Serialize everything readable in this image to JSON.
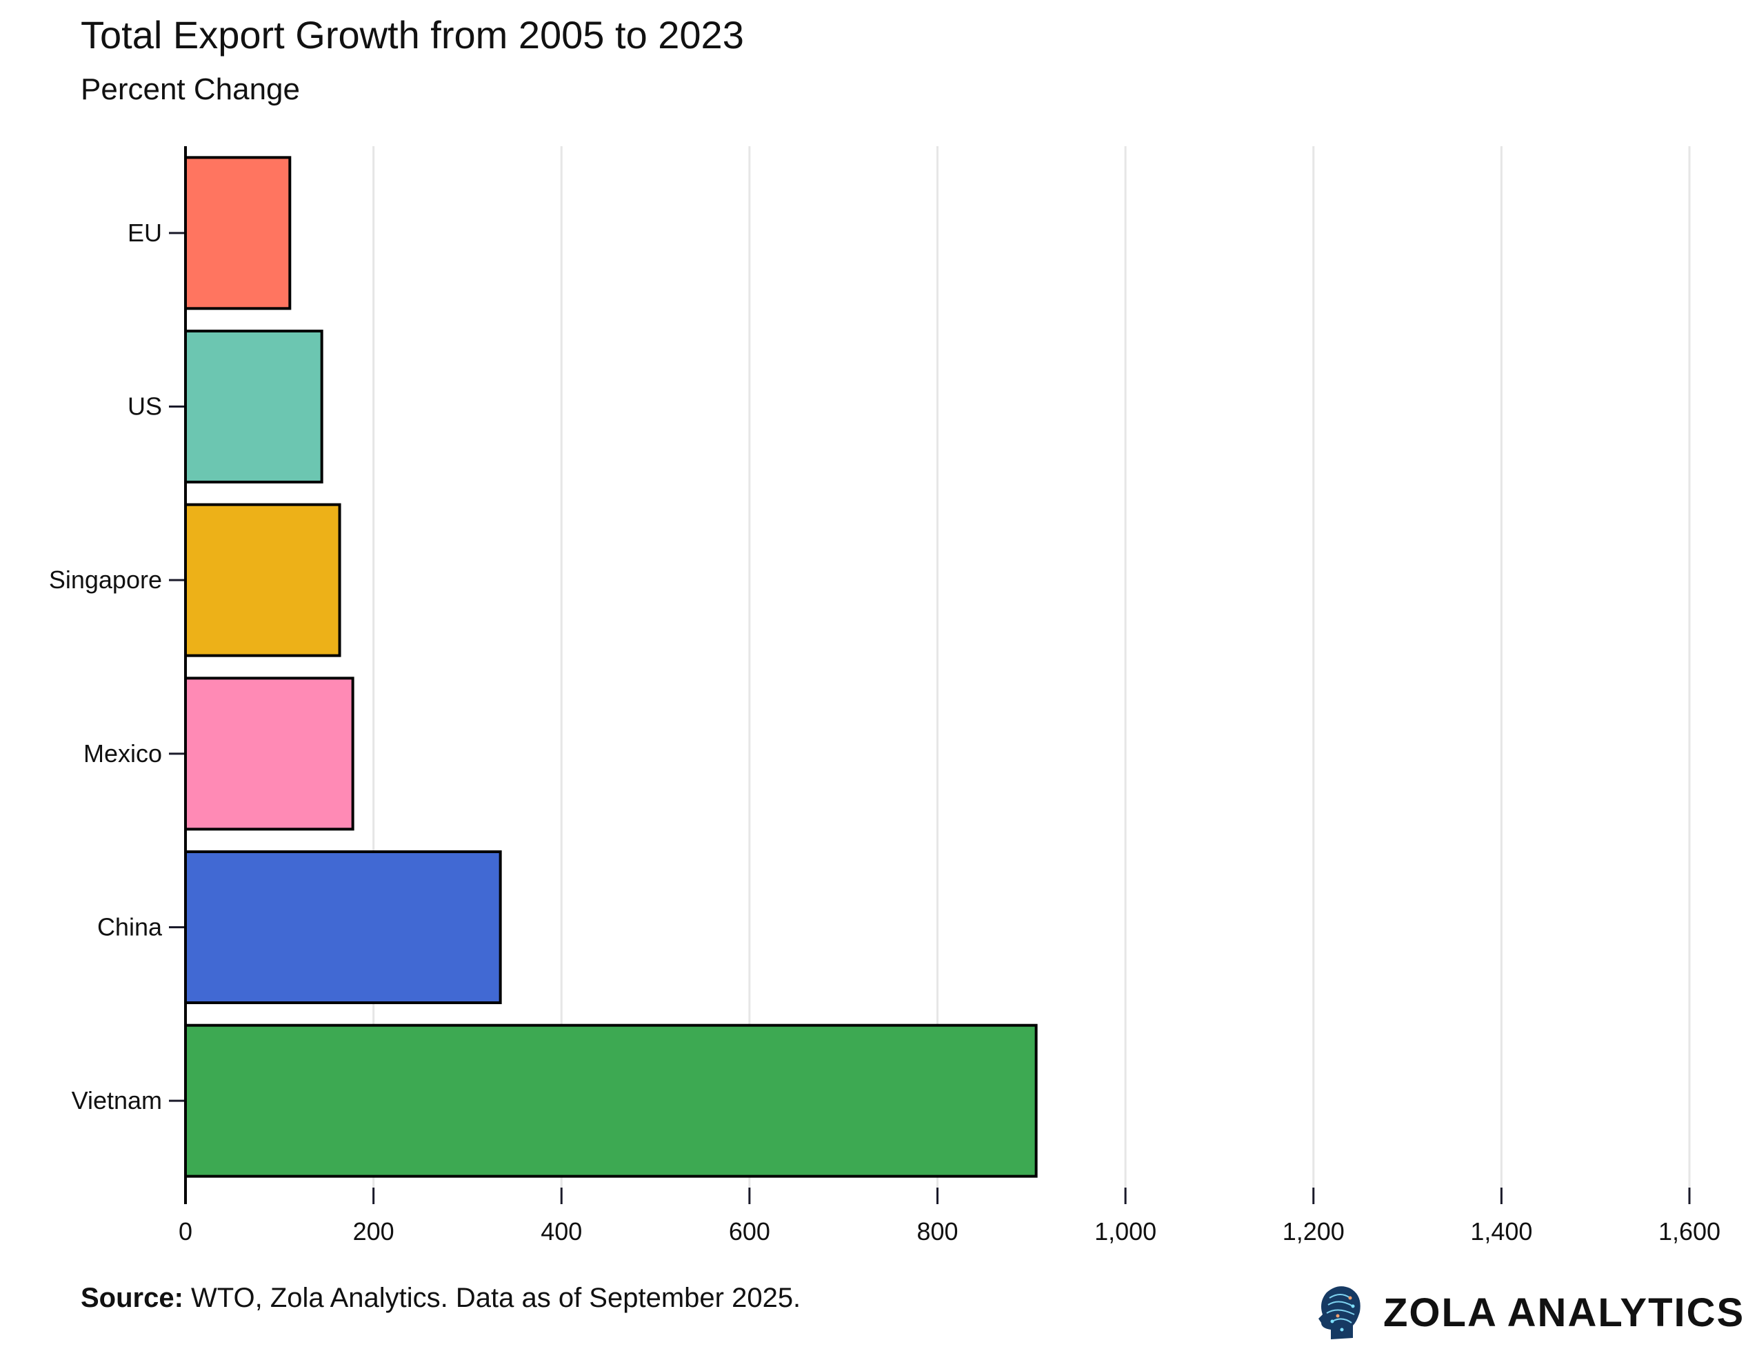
{
  "chart_data": {
    "type": "bar",
    "orientation": "horizontal",
    "title": "Total Export Growth from 2005 to 2023",
    "subtitle": "Percent Change",
    "categories": [
      "EU",
      "US",
      "Singapore",
      "Mexico",
      "China",
      "Vietnam"
    ],
    "values": [
      111,
      145,
      164,
      178,
      335,
      905
    ],
    "colors": [
      "#FF7560",
      "#6CC6B1",
      "#EDB118",
      "#FF8AB5",
      "#4169D3",
      "#3DA952"
    ],
    "xlim": [
      0,
      1600
    ],
    "xticks": [
      "0",
      "200",
      "400",
      "600",
      "800",
      "1,000",
      "1,200",
      "1,400",
      "1,600"
    ],
    "xtick_values": [
      0,
      200,
      400,
      600,
      800,
      1000,
      1200,
      1400,
      1600
    ],
    "xlabel": "",
    "ylabel": "",
    "grid": "vertical",
    "legend": "none"
  },
  "footer": {
    "source_label": "Source:",
    "source_text": " WTO, Zola Analytics. Data as of September 2025."
  },
  "logo": {
    "text": "ZOLA ANALYTICS",
    "icon": "head-circuit-icon"
  }
}
